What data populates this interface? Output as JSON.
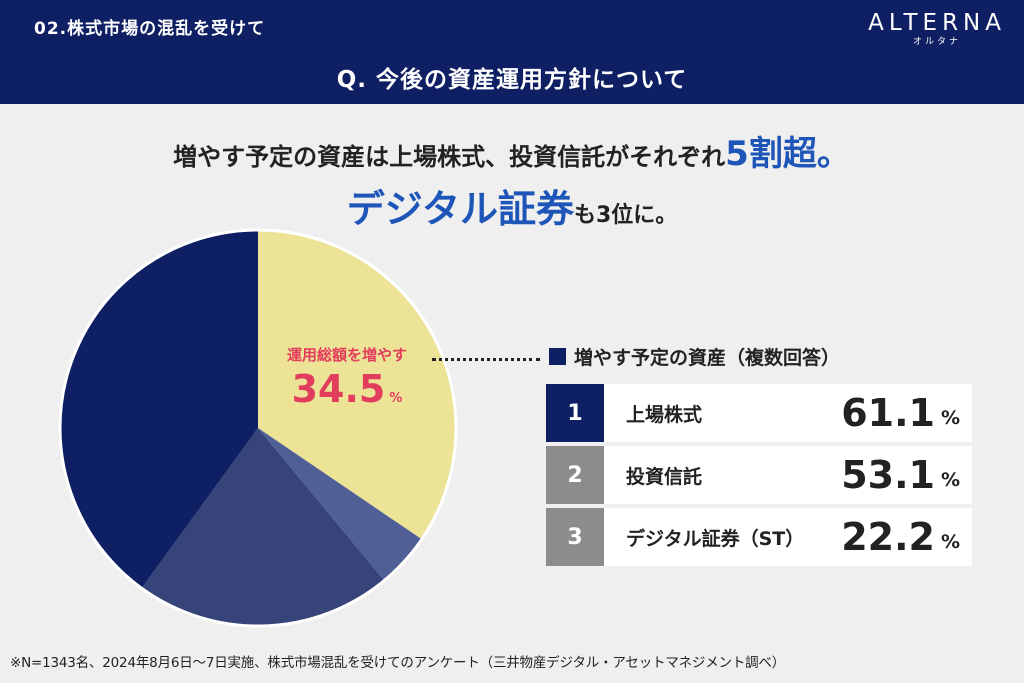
{
  "header": {
    "section": "02.株式市場の混乱を受けて",
    "question": "Q. 今後の資産運用方針について",
    "logo_main": "ALTERNA",
    "logo_sub": "オルタナ"
  },
  "headline": {
    "line1_text": "増やす予定の資産は上場株式、投資信託がそれぞれ",
    "line1_accent": "5割超。",
    "line2_accent": "デジタル証券",
    "line2_text": "も3位に。"
  },
  "pie_label": {
    "text": "運用総額を増やす",
    "value": "34.5",
    "unit": "%"
  },
  "legend": {
    "title": "増やす予定の資産（複数回答）"
  },
  "ranking": [
    {
      "rank": "1",
      "label": "上場株式",
      "value": "61.1",
      "unit": "%",
      "color": "#0e1f63"
    },
    {
      "rank": "2",
      "label": "投資信託",
      "value": "53.1",
      "unit": "%",
      "color": "#8c8c8c"
    },
    {
      "rank": "3",
      "label": "デジタル証券（ST）",
      "value": "22.2",
      "unit": "%",
      "color": "#8c8c8c"
    }
  ],
  "footnote": "※N=1343名、2024年8月6日〜7日実施、株式市場混乱を受けてのアンケート（三井物産デジタル・アセットマネジメント調べ）",
  "chart_data": {
    "type": "pie",
    "slices": [
      {
        "label": "運用総額を増やす",
        "value": 34.5,
        "color": "#ede396"
      },
      {
        "value": 4.5,
        "color": "#515f97"
      },
      {
        "value": 21.0,
        "color": "#36447a"
      },
      {
        "value": 40.0,
        "color": "#0e1f63"
      }
    ]
  }
}
